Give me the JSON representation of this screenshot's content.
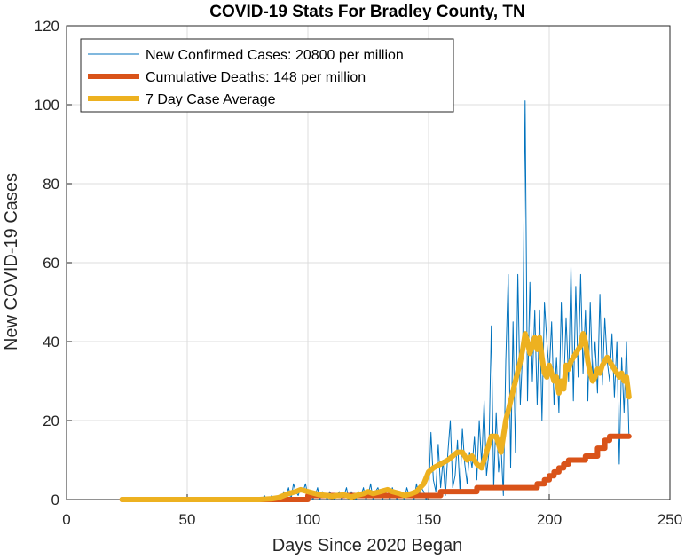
{
  "chart_data": {
    "type": "line",
    "title": "COVID-19 Stats For Bradley County, TN",
    "xlabel": "Days Since 2020 Began",
    "ylabel": "New COVID-19 Cases",
    "xlim": [
      0,
      250
    ],
    "ylim": [
      0,
      120
    ],
    "xticks": [
      0,
      50,
      100,
      150,
      200,
      250
    ],
    "yticks": [
      0,
      20,
      40,
      60,
      80,
      100,
      120
    ],
    "grid": true,
    "legend_position": "top-left",
    "series": [
      {
        "name": "New Confirmed Cases: 20800 per million",
        "color": "#0072BD",
        "line_width": "thin",
        "x": [
          80,
          81,
          82,
          83,
          84,
          85,
          86,
          87,
          88,
          89,
          90,
          91,
          92,
          93,
          94,
          95,
          96,
          97,
          98,
          99,
          100,
          101,
          102,
          103,
          104,
          105,
          106,
          107,
          108,
          109,
          110,
          111,
          112,
          113,
          114,
          115,
          116,
          117,
          118,
          119,
          120,
          121,
          122,
          123,
          124,
          125,
          126,
          127,
          128,
          129,
          130,
          131,
          132,
          133,
          134,
          135,
          136,
          137,
          138,
          139,
          140,
          141,
          142,
          143,
          144,
          145,
          146,
          147,
          148,
          149,
          150,
          151,
          152,
          153,
          154,
          155,
          156,
          157,
          158,
          159,
          160,
          161,
          162,
          163,
          164,
          165,
          166,
          167,
          168,
          169,
          170,
          171,
          172,
          173,
          174,
          175,
          176,
          177,
          178,
          179,
          180,
          181,
          182,
          183,
          184,
          185,
          186,
          187,
          188,
          189,
          190,
          191,
          192,
          193,
          194,
          195,
          196,
          197,
          198,
          199,
          200,
          201,
          202,
          203,
          204,
          205,
          206,
          207,
          208,
          209,
          210,
          211,
          212,
          213,
          214,
          215,
          216,
          217,
          218,
          219,
          220,
          221,
          222,
          223,
          224,
          225,
          226,
          227,
          228,
          229,
          230,
          231,
          232,
          233
        ],
        "y": [
          0,
          0,
          1,
          0,
          0,
          1,
          0,
          0,
          1,
          0,
          2,
          1,
          3,
          0,
          4,
          2,
          1,
          3,
          2,
          4,
          1,
          2,
          0,
          1,
          3,
          0,
          2,
          1,
          0,
          2,
          1,
          0,
          1,
          2,
          0,
          1,
          3,
          0,
          2,
          1,
          0,
          2,
          1,
          3,
          0,
          1,
          4,
          0,
          2,
          3,
          1,
          0,
          2,
          1,
          0,
          3,
          1,
          0,
          2,
          1,
          0,
          3,
          1,
          2,
          0,
          4,
          1,
          3,
          2,
          0,
          1,
          17,
          5,
          2,
          14,
          3,
          10,
          1,
          12,
          20,
          3,
          6,
          15,
          2,
          18,
          9,
          4,
          12,
          8,
          16,
          5,
          20,
          9,
          25,
          6,
          12,
          44,
          3,
          22,
          7,
          14,
          1,
          35,
          57,
          8,
          45,
          12,
          57,
          24,
          38,
          101,
          25,
          55,
          30,
          48,
          24,
          48,
          20,
          50,
          40,
          32,
          45,
          24,
          36,
          22,
          50,
          28,
          46,
          30,
          59,
          25,
          54,
          31,
          57,
          32,
          48,
          25,
          50,
          30,
          40,
          27,
          52,
          29,
          46,
          35,
          30,
          42,
          26,
          40,
          9,
          36,
          22,
          40,
          16
        ]
      },
      {
        "name": "Cumulative Deaths: 148 per million",
        "color": "#D95319",
        "line_width": "thick",
        "x": [
          23,
          100,
          100,
          104,
          104,
          120,
          120,
          130,
          130,
          140,
          140,
          155,
          155,
          170,
          170,
          185,
          185,
          195,
          195,
          198,
          198,
          200,
          200,
          202,
          202,
          204,
          204,
          206,
          206,
          208,
          208,
          210,
          210,
          215,
          215,
          220,
          220,
          223,
          223,
          225,
          225,
          228,
          228,
          233
        ],
        "y": [
          0,
          0,
          1,
          1,
          1,
          1,
          1,
          1,
          1,
          1,
          1,
          1,
          2,
          2,
          3,
          3,
          3,
          3,
          4,
          4,
          5,
          5,
          6,
          6,
          7,
          7,
          8,
          8,
          9,
          9,
          10,
          10,
          10,
          10,
          11,
          11,
          13,
          13,
          15,
          15,
          16,
          16,
          16,
          16
        ]
      },
      {
        "name": "7 Day Case Average",
        "color": "#EDB120",
        "line_width": "thick",
        "x": [
          23,
          80,
          85,
          88,
          90,
          92,
          95,
          97,
          100,
          103,
          105,
          108,
          110,
          112,
          115,
          118,
          120,
          123,
          125,
          127,
          130,
          133,
          135,
          138,
          140,
          143,
          145,
          148,
          150,
          152,
          155,
          158,
          160,
          162,
          164,
          166,
          168,
          170,
          172,
          174,
          176,
          178,
          180,
          182,
          184,
          186,
          188,
          189,
          190,
          191,
          192,
          193,
          194,
          195,
          196,
          197,
          198,
          199,
          200,
          201,
          202,
          203,
          204,
          205,
          206,
          207,
          208,
          209,
          210,
          211,
          212,
          213,
          214,
          215,
          216,
          217,
          218,
          219,
          220,
          221,
          222,
          223,
          224,
          225,
          226,
          227,
          228,
          229,
          230,
          231,
          232,
          233
        ],
        "y": [
          0,
          0,
          0.2,
          0.5,
          1,
          1.5,
          2,
          2.5,
          2,
          1.5,
          1.2,
          1,
          0.8,
          1,
          1.2,
          0.6,
          1,
          1.5,
          2,
          1.5,
          2,
          2.5,
          2,
          1.5,
          1,
          1.5,
          2,
          4,
          7,
          8,
          9,
          10,
          11,
          12,
          12,
          10,
          11,
          9,
          8,
          12,
          16,
          16,
          12,
          20,
          25,
          30,
          35,
          38,
          42,
          40,
          37,
          39,
          41,
          38,
          41,
          36,
          32,
          31,
          34,
          32,
          30,
          31,
          27,
          30,
          28,
          34,
          33,
          35,
          36,
          37,
          38,
          39,
          42,
          40,
          35,
          32,
          30,
          31,
          33,
          32,
          34,
          35,
          36,
          35,
          34,
          33,
          32,
          31,
          32,
          30,
          31,
          26
        ]
      }
    ]
  }
}
